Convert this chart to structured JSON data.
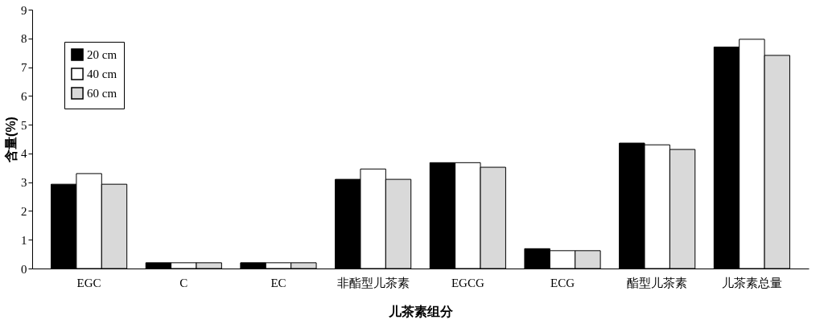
{
  "chart_data": {
    "type": "bar",
    "xlabel": "儿茶素组分",
    "ylabel": "含量(%)",
    "categories": [
      "EGC",
      "C",
      "EC",
      "非酯型儿茶素",
      "EGCG",
      "ECG",
      "酯型儿茶素",
      "儿茶素总量"
    ],
    "series": [
      {
        "name": "20 cm",
        "color": "#000000",
        "values": [
          2.93,
          0.2,
          0.2,
          3.1,
          3.68,
          0.69,
          4.36,
          7.7
        ]
      },
      {
        "name": "40 cm",
        "color": "#ffffff",
        "values": [
          3.3,
          0.2,
          0.2,
          3.46,
          3.68,
          0.62,
          4.3,
          7.97
        ]
      },
      {
        "name": "60 cm",
        "color": "#d9d9d9",
        "values": [
          2.93,
          0.2,
          0.2,
          3.1,
          3.52,
          0.62,
          4.14,
          7.41
        ]
      }
    ],
    "ylim": [
      0,
      9
    ],
    "yticks": [
      0,
      1,
      2,
      3,
      4,
      5,
      6,
      7,
      8,
      9
    ],
    "grid": false,
    "legend": "top left"
  }
}
